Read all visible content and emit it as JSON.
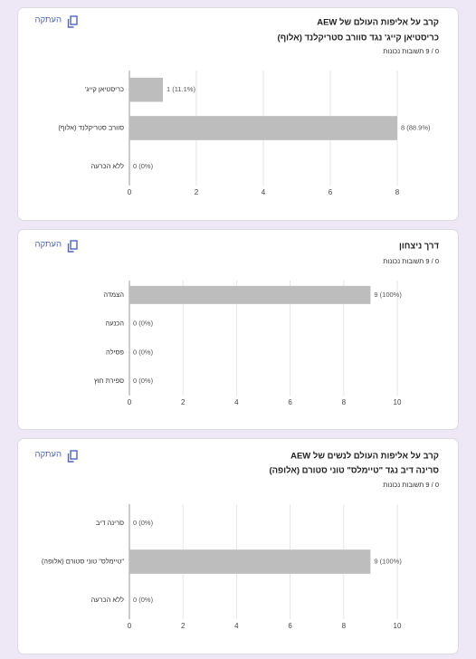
{
  "cards": [
    {
      "copy": "העתקה",
      "title_lines": [
        "קרב על אליפות העולם של AEW",
        "כריסטיאן קייג' נגד סוורב סטריקלנד (אלוף)"
      ],
      "score": "0 / 9 תשובות נכונות",
      "chart": {
        "type": "bar",
        "categories": [
          "כריסטיאן קייג'",
          "סוורב סטריקלנד (אלוף)",
          "ללא הכרעה"
        ],
        "values": [
          1,
          8,
          0
        ],
        "value_labels": [
          "1 (11.1%)",
          "8 (88.9%)",
          "0 (0%)"
        ],
        "color": "#bdbdbd",
        "xlim": [
          0,
          8
        ],
        "xticks": [
          0,
          2,
          4,
          6,
          8
        ],
        "grid": true
      }
    },
    {
      "copy": "העתקה",
      "title_lines": [
        "דרך ניצחון"
      ],
      "score": "0 / 9 תשובות נכונות",
      "chart": {
        "type": "bar",
        "categories": [
          "הצמדה",
          "הכנעה",
          "פסילה",
          "ספירת חוץ"
        ],
        "values": [
          9,
          0,
          0,
          0
        ],
        "value_labels": [
          "9 (100%)",
          "0 (0%)",
          "0 (0%)",
          "0 (0%)"
        ],
        "color": "#bdbdbd",
        "xlim": [
          0,
          10
        ],
        "xticks": [
          0,
          2,
          4,
          6,
          8,
          10
        ],
        "grid": true
      }
    },
    {
      "copy": "העתקה",
      "title_lines": [
        "קרב על אליפות העולם לנשים של AEW",
        "סרינה דיב נגד \"טיימלס\" טוני סטורם (אלופה)"
      ],
      "score": "0 / 9 תשובות נכונות",
      "chart": {
        "type": "bar",
        "categories": [
          "סרינה דיב",
          "\"טיימלס\" טוני סטורם (אלופה)",
          "ללא הכרעה"
        ],
        "values": [
          0,
          9,
          0
        ],
        "value_labels": [
          "0 (0%)",
          "9 (100%)",
          "0 (0%)"
        ],
        "color": "#bdbdbd",
        "xlim": [
          0,
          10
        ],
        "xticks": [
          0,
          2,
          4,
          6,
          8,
          10
        ],
        "grid": true
      }
    }
  ]
}
